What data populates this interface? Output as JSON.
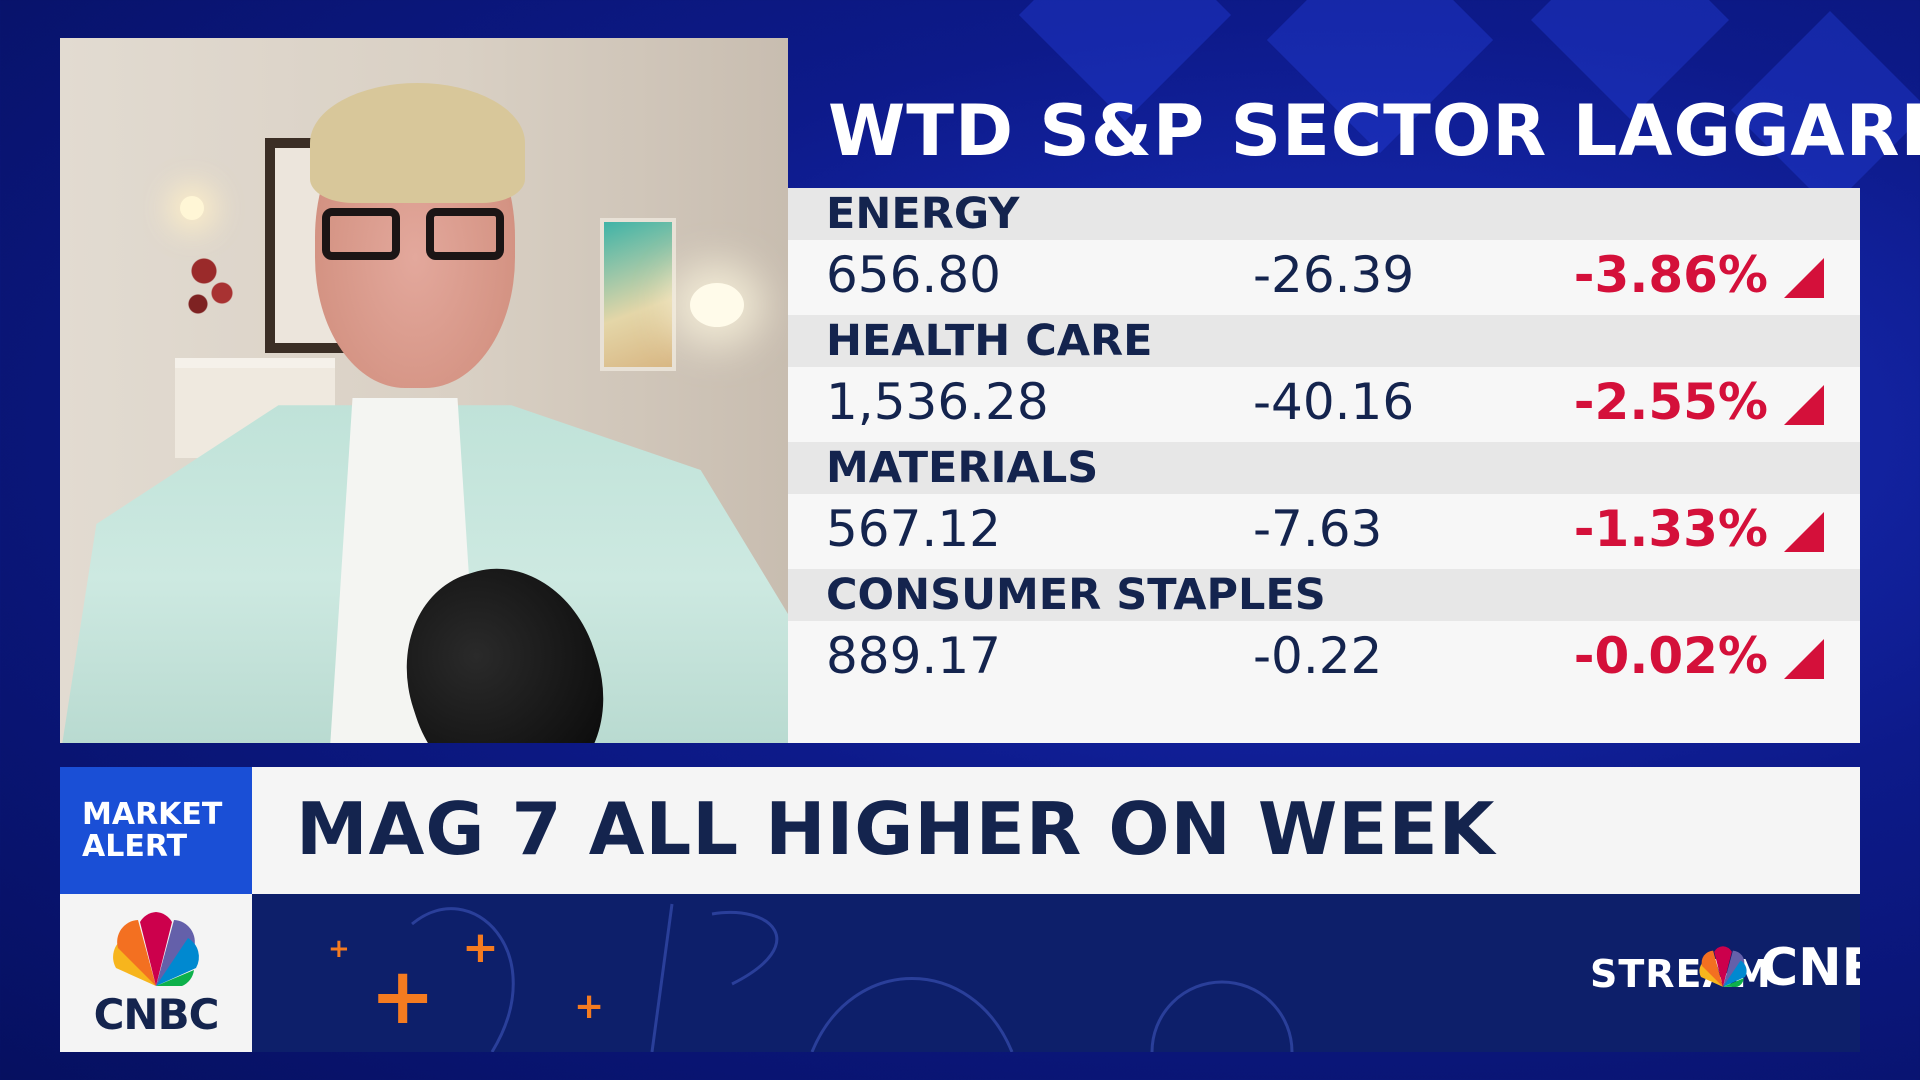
{
  "panel": {
    "title": "WTD S&P SECTOR LAGGARDS"
  },
  "sectors": [
    {
      "name": "ENERGY",
      "price": "656.80",
      "change": "-26.39",
      "pct": "-3.86%"
    },
    {
      "name": "HEALTH CARE",
      "price": "1,536.28",
      "change": "-40.16",
      "pct": "-2.55%"
    },
    {
      "name": "MATERIALS",
      "price": "567.12",
      "change": "-7.63",
      "pct": "-1.33%"
    },
    {
      "name": "CONSUMER STAPLES",
      "price": "889.17",
      "change": "-0.22",
      "pct": "-0.02%"
    }
  ],
  "lower_third": {
    "tag_line1": "MARKET",
    "tag_line2": "ALERT",
    "headline": "MAG 7 ALL HIGHER ON WEEK"
  },
  "branding": {
    "network": "CNBC",
    "stream_label": "STREAM",
    "stream_service": "CNBC+"
  },
  "colors": {
    "background": "#0d1a8a",
    "navy_text": "#14244e",
    "negative": "#d4103a",
    "alert_blue": "#1a4fd6",
    "accent_orange": "#f47b20"
  },
  "icons": {
    "down_indicator": "red-triangle-icon",
    "network_logo": "peacock-icon"
  }
}
